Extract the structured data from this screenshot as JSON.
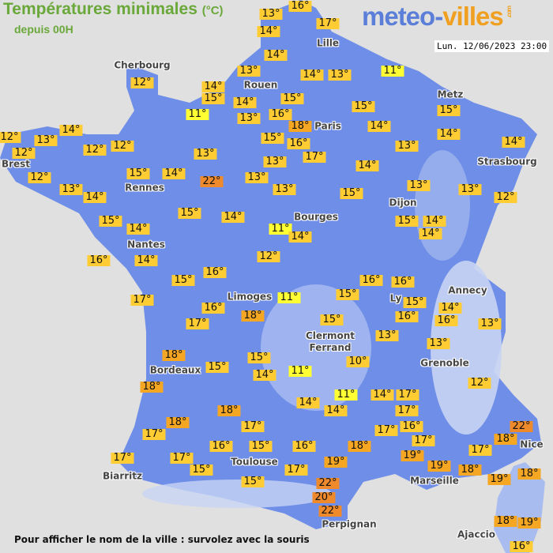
{
  "header": {
    "title": "Températures minimales",
    "unit": "(°C)",
    "subtitle": "depuis 00H",
    "logo_a": "meteo-",
    "logo_b": "villes",
    "logo_com": ".com",
    "datetime": "Lun. 12/06/2023 23:00"
  },
  "footer": "Pour afficher le nom de la ville : survolez avec la souris",
  "colors": {
    "land": "#6f8ee8",
    "mountain": "#c8d4f4",
    "temp_11": "#ffff33",
    "temp_10_17": "#ffcc33",
    "temp_18_19": "#f5a623",
    "temp_20_22": "#ee8a2c",
    "background": "#e0e0e0"
  },
  "cities": [
    "Cherbourg",
    "Lille",
    "Rouen",
    "Metz",
    "Paris",
    "Brest",
    "Strasbourg",
    "Rennes",
    "Dijon",
    "Bourges",
    "Nantes",
    "Annecy",
    "Limoges",
    "Ly",
    "Clermont\nFerrand",
    "Grenoble",
    "Bordeaux",
    "Toulouse",
    "Nice",
    "Biarritz",
    "Marseille",
    "Perpignan",
    "Ajaccio"
  ],
  "temperatures": [
    "13°",
    "16°",
    "17°",
    "14°",
    "14°",
    "13°",
    "14°",
    "13°",
    "11°",
    "12°",
    "14°",
    "15°",
    "14°",
    "15°",
    "15°",
    "15°",
    "11°",
    "13°",
    "16°",
    "18°",
    "14°",
    "14°",
    "12°",
    "13°",
    "14°",
    "12°",
    "12°",
    "12°",
    "15°",
    "16°",
    "17°",
    "13°",
    "14°",
    "13°",
    "13°",
    "14°",
    "15°",
    "14°",
    "12°",
    "22°",
    "13°",
    "13°",
    "14°",
    "13°",
    "13°",
    "13°",
    "15°",
    "12°",
    "15°",
    "14°",
    "15°",
    "14°",
    "11°",
    "14°",
    "15°",
    "14°",
    "14°",
    "16°",
    "14°",
    "12°",
    "15°",
    "16°",
    "16°",
    "16°",
    "17°",
    "11°",
    "15°",
    "15°",
    "14°",
    "16°",
    "17°",
    "16°",
    "16°",
    "13°",
    "18°",
    "15°",
    "18°",
    "13°",
    "13°",
    "15°",
    "15°",
    "10°",
    "11°",
    "18°",
    "14°",
    "11°",
    "14°",
    "17°",
    "14°",
    "14°",
    "12°",
    "18°",
    "18°",
    "17°",
    "17°",
    "17°",
    "17°",
    "16°",
    "22°",
    "18°",
    "17°",
    "17°",
    "16°",
    "15°",
    "16°",
    "18°",
    "17°",
    "19°",
    "19°",
    "17°",
    "15°",
    "17°",
    "19°",
    "18°",
    "19°",
    "18°",
    "15°",
    "22°",
    "20°",
    "22°",
    "18°",
    "19°",
    "16°"
  ]
}
